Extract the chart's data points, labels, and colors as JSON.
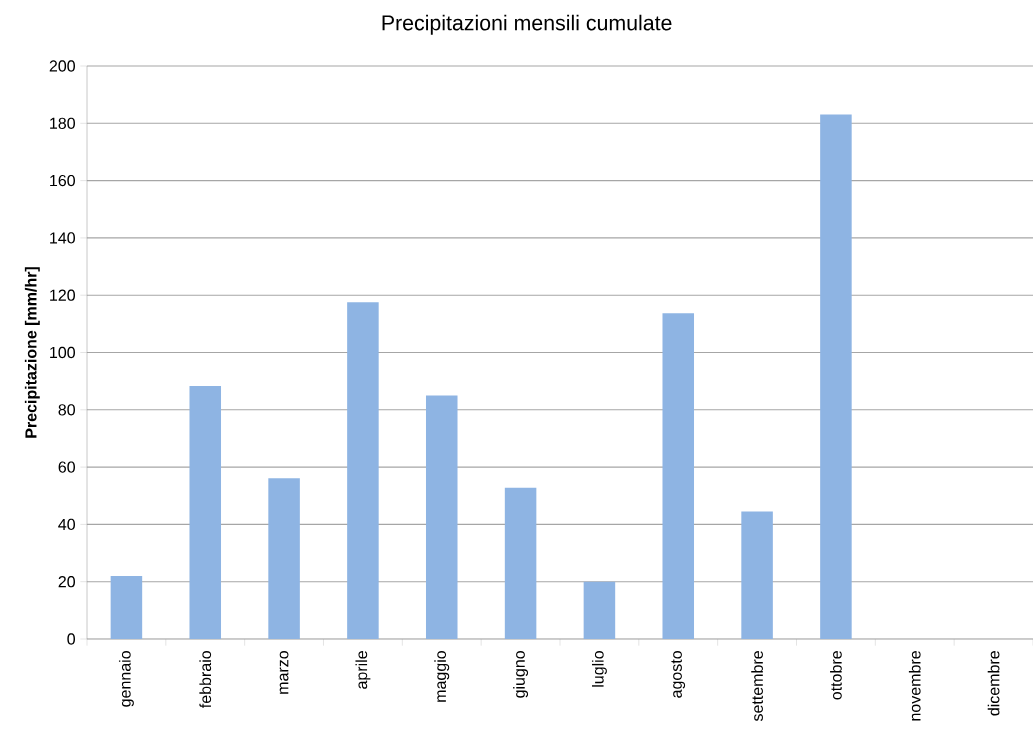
{
  "chart_data": {
    "type": "bar",
    "title": "Precipitazioni mensili cumulate",
    "ylabel": "Precipitazione [mm/hr]",
    "categories": [
      "gennaio",
      "febbraio",
      "marzo",
      "aprile",
      "maggio",
      "giugno",
      "luglio",
      "agosto",
      "settembre",
      "ottobre",
      "novembre",
      "dicembre"
    ],
    "values": [
      22,
      88.3,
      56.1,
      117.5,
      85,
      52.8,
      20,
      113.7,
      44.5,
      183.1,
      null,
      null
    ],
    "color": "#8eb4e3",
    "ylim": [
      0,
      200
    ],
    "yticks": [
      0,
      20,
      40,
      60,
      80,
      100,
      120,
      140,
      160,
      180,
      200
    ],
    "grid": "y"
  }
}
